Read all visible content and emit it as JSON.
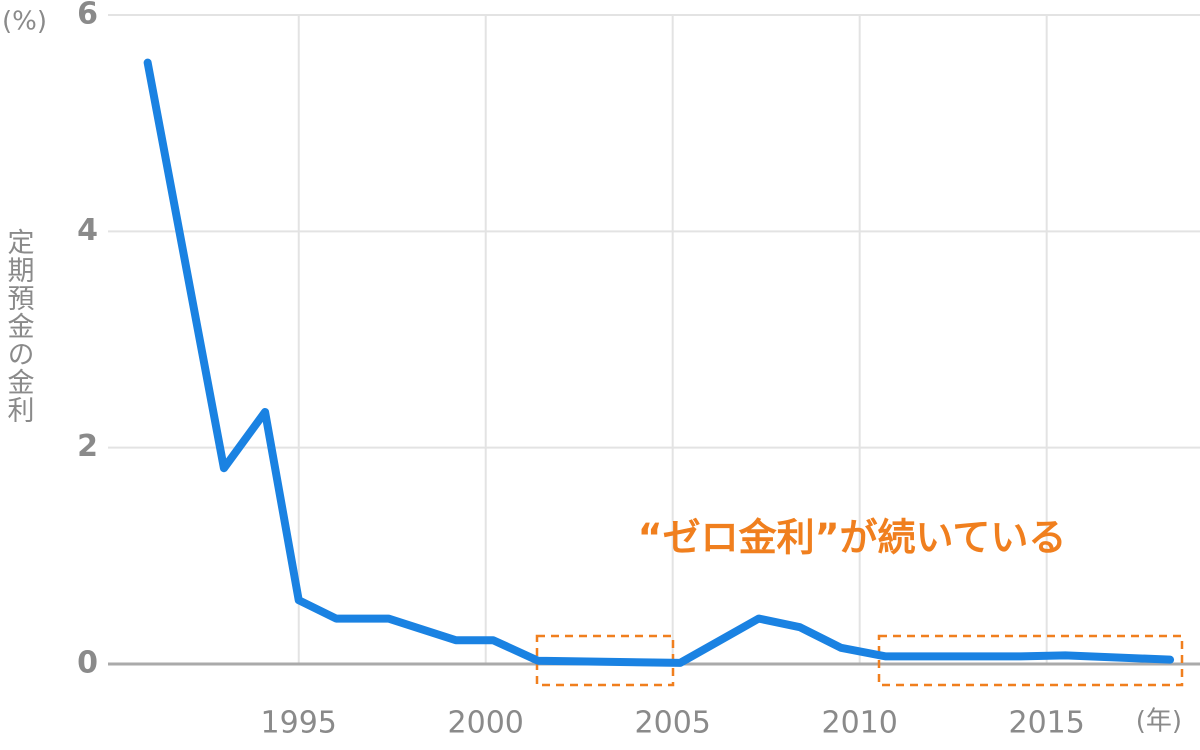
{
  "chart_data": {
    "type": "line",
    "y_label": "定期預金の金利",
    "y_unit": "(%)",
    "x_unit": "(年)",
    "annotation": "“ゼロ金利”が続いている",
    "x": [
      1990.96,
      1993.0,
      1994.1,
      1995.0,
      1996.0,
      1997.4,
      1999.2,
      2000.2,
      2001.4,
      2005.2,
      2007.3,
      2008.4,
      2009.5,
      2010.7,
      2014.3,
      2015.5,
      2018.3
    ],
    "series": [
      {
        "color": "#1a82e2",
        "values": [
          5.56,
          1.81,
          2.33,
          0.59,
          0.42,
          0.42,
          0.22,
          0.22,
          0.03,
          0.01,
          0.42,
          0.34,
          0.15,
          0.07,
          0.07,
          0.08,
          0.04
        ]
      }
    ],
    "xlim": [
      1989.9,
      2019.1
    ],
    "xticks": [
      1995,
      2000,
      2005,
      2010,
      2015
    ],
    "ylim": [
      0,
      6
    ],
    "yticks": [
      0,
      2,
      4,
      6
    ],
    "grid": true,
    "annotation_color": "#f07f1e"
  }
}
